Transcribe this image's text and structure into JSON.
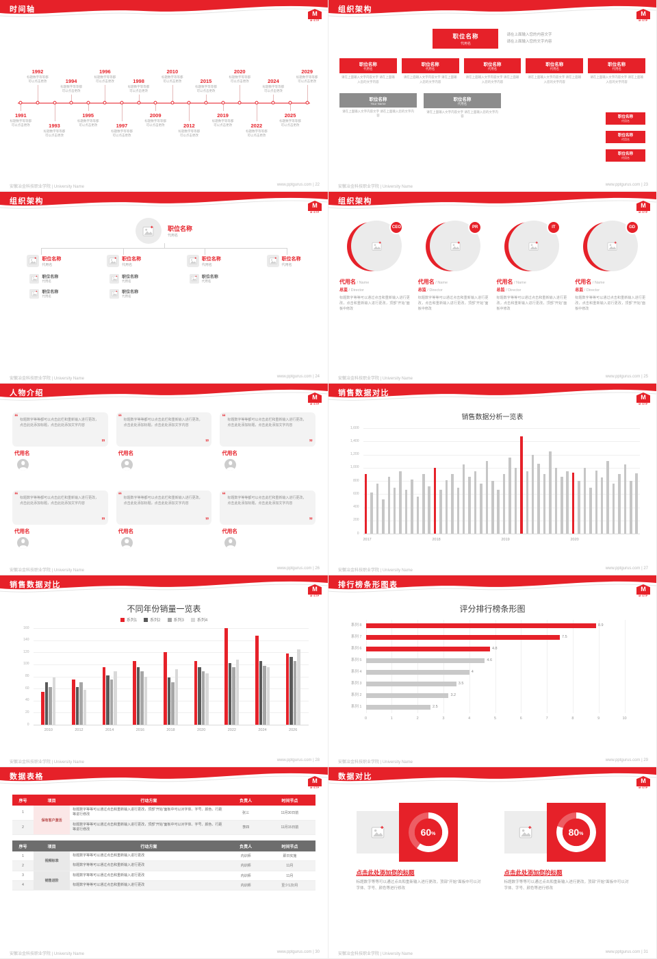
{
  "common": {
    "footer_left": "安徽冶金科技职业学院 | University Name",
    "logo_text": "M",
    "logo_sub": "M·STP",
    "quote_open": "“",
    "quote_close": "”",
    "percent_sign": "%",
    "accent_color": "#e62129",
    "gray_box_color": "#8c8c8c"
  },
  "slide22": {
    "title": "时间轴",
    "page": "22",
    "footer_right": "www.pptgurus.com | 22",
    "caption": "标题数字等等都可以点击更改",
    "items": [
      {
        "year": "1991",
        "pos": "b1"
      },
      {
        "year": "1992",
        "pos": "a1"
      },
      {
        "year": "1993",
        "pos": "b2"
      },
      {
        "year": "1994",
        "pos": "a2"
      },
      {
        "year": "1995",
        "pos": "b1"
      },
      {
        "year": "1996",
        "pos": "a1"
      },
      {
        "year": "1997",
        "pos": "b2"
      },
      {
        "year": "1998",
        "pos": "a2"
      },
      {
        "year": "2009",
        "pos": "b1"
      },
      {
        "year": "2010",
        "pos": "a1"
      },
      {
        "year": "2012",
        "pos": "b2"
      },
      {
        "year": "2015",
        "pos": "a2"
      },
      {
        "year": "2019",
        "pos": "b1"
      },
      {
        "year": "2020",
        "pos": "a1"
      },
      {
        "year": "2022",
        "pos": "b2"
      },
      {
        "year": "2024",
        "pos": "a2"
      },
      {
        "year": "2025",
        "pos": "b1"
      },
      {
        "year": "2029",
        "pos": "a1"
      }
    ]
  },
  "slide23": {
    "title": "组织架构",
    "page": "23",
    "footer_right": "www.pptgurus.com | 23",
    "top_box": {
      "title": "职位名称",
      "sub": "代用名"
    },
    "top_desc1": "请在上面输入您的内容文字",
    "top_desc2": "请在上面输入您的文字内容",
    "row_boxes": [
      {
        "title": "职位名称",
        "sub": "代用名",
        "desc": "请在上面输入文字内容文字 请在上面输入您的文字内容"
      },
      {
        "title": "职位名称",
        "sub": "代用名",
        "desc": "请在上面输入文字内容文字 请在上面输入您的文字内容"
      },
      {
        "title": "职位名称",
        "sub": "代用名",
        "desc": "请在上面输入文字内容文字 请在上面输入您的文字内容"
      },
      {
        "title": "职位名称",
        "sub": "代用名",
        "desc": "请在上面输入文字内容文字 请在上面输入您的文字内容"
      },
      {
        "title": "职位名称",
        "sub": "代用名",
        "desc": "请在上面输入文字内容文字 请在上面输入您的文字内容"
      }
    ],
    "side_boxes": [
      {
        "title": "职位名称",
        "sub": "代用名"
      },
      {
        "title": "职位名称",
        "sub": "代用名"
      },
      {
        "title": "职位名称",
        "sub": "代用名"
      }
    ],
    "bottom_boxes": [
      {
        "title": "职位名称",
        "sub": "Your Name",
        "desc": "请在上面输入文字内容文字 请在上面输入您的文字内容"
      },
      {
        "title": "职位名称",
        "sub": "代用名",
        "desc": "请在上面输入文字内容文字 请在上面输入您的文字内容"
      }
    ]
  },
  "slide24": {
    "title": "组织架构",
    "page": "24",
    "footer_right": "www.pptgurus.com | 24",
    "root": {
      "title": "职位名称",
      "sub": "代用名"
    },
    "children": [
      {
        "title": "职位名称",
        "sub": "代用名",
        "subs": [
          {
            "t": "职位名称",
            "s": "代用名"
          },
          {
            "t": "职位名称",
            "s": "代用名"
          }
        ]
      },
      {
        "title": "职位名称",
        "sub": "代用名",
        "subs": [
          {
            "t": "职位名称",
            "s": "代用名"
          },
          {
            "t": "职位名称",
            "s": "代用名"
          }
        ]
      },
      {
        "title": "职位名称",
        "sub": "代用名",
        "subs": [
          {
            "t": "职位名称",
            "s": "代用名"
          }
        ]
      },
      {
        "title": "职位名称",
        "sub": "代用名",
        "subs": []
      }
    ]
  },
  "slide25": {
    "title": "组织架构",
    "page": "25",
    "footer_right": "www.pptgurus.com | 25",
    "members": [
      {
        "badge": "CEO",
        "name": "代用名",
        "name_en": " / Name",
        "role": "总监",
        "role_en": " / Director",
        "desc": "标题数字等等可以通过点击和重新输入进行更改，点击和重新输入进行更改，顶部“开始”面板中修改"
      },
      {
        "badge": "PR",
        "name": "代用名",
        "name_en": " / Name",
        "role": "总监",
        "role_en": " / Director",
        "desc": "标题数字等等可以通过点击和重新输入进行更改，点击和重新输入进行更改，顶部“开始”面板中修改"
      },
      {
        "badge": "IT",
        "name": "代用名",
        "name_en": " / Name",
        "role": "总监",
        "role_en": " / Director",
        "desc": "标题数字等等可以通过点击和重新输入进行更改，点击和重新输入进行更改，顶部“开始”面板中修改"
      },
      {
        "badge": "GD",
        "name": "代用名",
        "name_en": " / Name",
        "role": "总监",
        "role_en": " / Director",
        "desc": "标题数字等等可以通过点击和重新输入进行更改，点击和重新输入进行更改，顶部“开始”面板中修改"
      }
    ]
  },
  "slide26": {
    "title": "人物介绍",
    "page": "26",
    "footer_right": "www.pptgurus.com | 26",
    "cards": [
      {
        "text": "标题数字等等都可以点击此栏和重新输入进行更改，点击此处添加标题，点击此处添加文字内容",
        "name": "代用名"
      },
      {
        "text": "标题数字等等都可以点击此栏和重新输入进行更改，点击此处添加标题，点击此处添加文字内容",
        "name": "代用名"
      },
      {
        "text": "标题数字等等都可以点击此栏和重新输入进行更改，点击此处添加标题，点击此处添加文字内容",
        "name": "代用名"
      },
      {
        "text": "标题数字等等都可以点击此栏和重新输入进行更改，点击此处添加标题，点击此处添加文字内容",
        "name": "代用名"
      },
      {
        "text": "标题数字等等都可以点击此栏和重新输入进行更改，点击此处添加标题，点击此处添加文字内容",
        "name": "代用名"
      },
      {
        "text": "标题数字等等都可以点击此栏和重新输入进行更改，点击此处添加标题，点击此处添加文字内容",
        "name": "代用名"
      }
    ]
  },
  "slide27": {
    "title": "销售数据对比",
    "page": "27",
    "footer_right": "www.pptgurus.com | 27"
  },
  "slide28": {
    "title": "销售数据对比",
    "page": "28",
    "footer_right": "www.pptgurus.com | 28"
  },
  "slide29": {
    "title": "排行榜条形图表",
    "page": "29",
    "footer_right": "www.pptgurus.com | 29"
  },
  "slide30": {
    "title": "数据表格",
    "page": "30",
    "footer_right": "www.pptgurus.com | 30",
    "headers": [
      "序号",
      "项目",
      "行动方案",
      "负责人",
      "时间节点"
    ],
    "t1_project": "保有客户激活",
    "t1": [
      {
        "no": "1",
        "plan": "标题数字等等可以通过点击和重新输入进行更改，顶部“开始”面板中可以对字体、字号、颜色、行距等进行修改",
        "owner": "张三",
        "time": "11月30日前"
      },
      {
        "no": "2",
        "plan": "标题数字等等可以通过点击和重新输入进行更改，顶部“开始”面板中可以对字体、字号、颜色、行距等进行修改",
        "owner": "李四",
        "time": "11月15日前"
      }
    ],
    "t2_projects": [
      "视频标准",
      "销售进阶"
    ],
    "t2": [
      {
        "no": "1",
        "plan": "标题数字等等可以通过点击和重新输入进行更改",
        "owner": "内训师",
        "time": "即日实施"
      },
      {
        "no": "2",
        "plan": "标题数字等等可以通过点击和重新输入进行更改",
        "owner": "内训师",
        "time": "11月"
      },
      {
        "no": "3",
        "plan": "标题数字等等可以通过点击和重新输入进行更改",
        "owner": "内训师",
        "time": "11月"
      },
      {
        "no": "4",
        "plan": "标题数字等等可以通过点击和重新输入进行更改",
        "owner": "内训师",
        "time": "至少1次/月"
      }
    ]
  },
  "slide31": {
    "title": "数据对比",
    "page": "31",
    "footer_right": "www.pptgurus.com | 31",
    "panels": [
      {
        "percent": "60",
        "title": "点击此处添加您的标题",
        "desc": "标题数字等等可以通过点击和重新输入进行更改，顶部“开始”面板中可以对字体、字号、颜色等进行修改"
      },
      {
        "percent": "80",
        "title": "点击此处添加您的标题",
        "desc": "标题数字等等可以通过点击和重新输入进行更改，顶部“开始”面板中可以对字体、字号、颜色等进行修改"
      }
    ]
  },
  "chart_data": [
    {
      "type": "bar",
      "title": "销售数据分析一览表",
      "ylim": [
        0,
        1600
      ],
      "ytick": 200,
      "bar_color": "#c6c6c6",
      "highlight_color": "#e62129",
      "groups": [
        "2017",
        "2018",
        "2019",
        "2020"
      ],
      "group_starts": [
        0,
        12,
        24,
        36
      ],
      "red_indices": [
        0,
        12,
        27,
        36
      ],
      "values": [
        900,
        620,
        760,
        520,
        860,
        700,
        950,
        660,
        820,
        560,
        900,
        720,
        1000,
        660,
        810,
        900,
        700,
        1050,
        860,
        950,
        760,
        1100,
        800,
        660,
        900,
        1150,
        1000,
        1480,
        950,
        1200,
        1060,
        900,
        1250,
        1000,
        860,
        950,
        930,
        800,
        1000,
        700,
        960,
        850,
        1100,
        760,
        900,
        1050,
        800,
        910
      ]
    },
    {
      "type": "bar-grouped",
      "title": "不同年份销量一览表",
      "categories": [
        "2010",
        "2012",
        "2014",
        "2016",
        "2018",
        "2020",
        "2022",
        "2024",
        "2026"
      ],
      "ylim": [
        0,
        160
      ],
      "ytick": 20,
      "series": [
        {
          "name": "系列1",
          "color": "#e62129",
          "values": [
            55,
            75,
            95,
            105,
            120,
            105,
            160,
            148,
            118
          ]
        },
        {
          "name": "系列2",
          "color": "#595959",
          "values": [
            70,
            62,
            82,
            95,
            78,
            95,
            102,
            106,
            112
          ]
        },
        {
          "name": "系列3",
          "color": "#a6a6a6",
          "values": [
            62,
            70,
            75,
            88,
            70,
            88,
            95,
            98,
            105
          ]
        },
        {
          "name": "系列4",
          "color": "#d9d9d9",
          "values": [
            78,
            58,
            88,
            80,
            92,
            85,
            108,
            95,
            125
          ]
        }
      ]
    },
    {
      "type": "bar-horizontal",
      "title": "评分排行榜条形图",
      "categories": [
        "系列 8",
        "系列 7",
        "系列 6",
        "系列 5",
        "系列 4",
        "系列 3",
        "系列 2",
        "系列 1"
      ],
      "values": [
        8.9,
        7.5,
        4.8,
        4.6,
        4,
        3.5,
        3.2,
        2.5
      ],
      "colors": [
        "#e62129",
        "#e62129",
        "#e62129",
        "#c9c9c9",
        "#c9c9c9",
        "#c9c9c9",
        "#c9c9c9",
        "#c9c9c9"
      ],
      "xlim": [
        0,
        10
      ],
      "xticks": [
        0,
        1,
        2,
        3,
        4,
        5,
        6,
        7,
        8,
        9,
        10
      ]
    }
  ]
}
